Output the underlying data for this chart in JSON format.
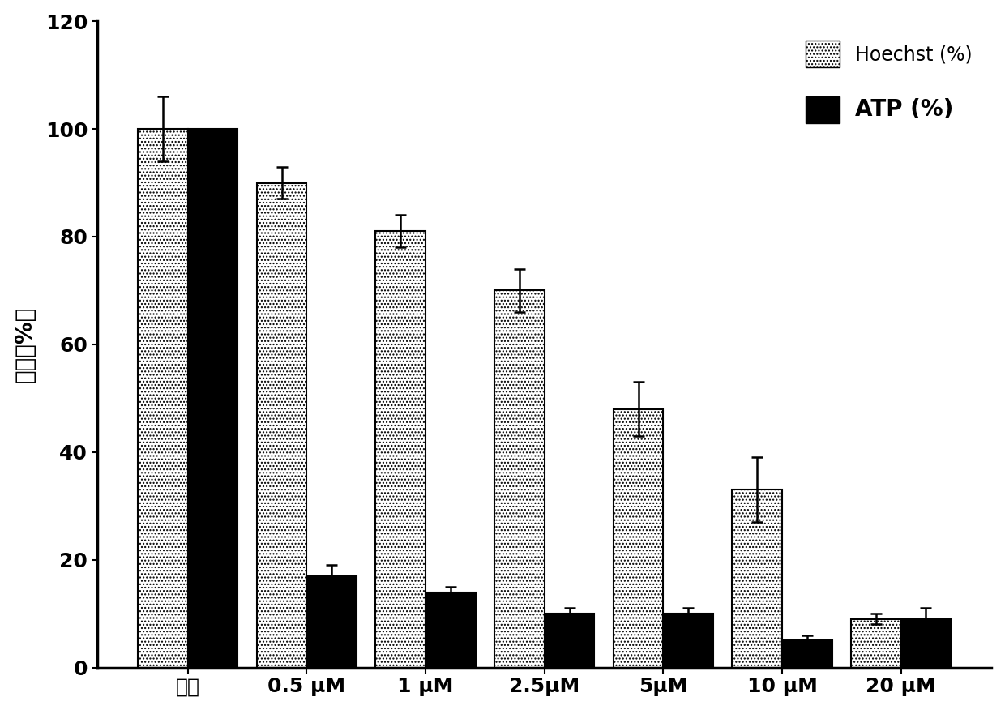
{
  "categories": [
    "对照",
    "0.5 μM",
    "1 μM",
    "2.5μM",
    "5μM",
    "10 μM",
    "20 μM"
  ],
  "hoechst_values": [
    100,
    90,
    81,
    70,
    48,
    33,
    9
  ],
  "atp_values": [
    100,
    17,
    14,
    10,
    10,
    5,
    9
  ],
  "hoechst_errors": [
    6,
    3,
    3,
    4,
    5,
    6,
    1
  ],
  "atp_errors": [
    0,
    2,
    1,
    1,
    1,
    1,
    2
  ],
  "ylabel": "对照（%）",
  "ylim": [
    0,
    120
  ],
  "yticks": [
    0,
    20,
    40,
    60,
    80,
    100,
    120
  ],
  "bar_width": 0.42,
  "hoechst_label": "Hoechst (%)",
  "atp_label": "ATP (%)",
  "background_color": "#ffffff",
  "legend_fontsize": 17,
  "axis_fontsize": 20,
  "tick_fontsize": 18
}
